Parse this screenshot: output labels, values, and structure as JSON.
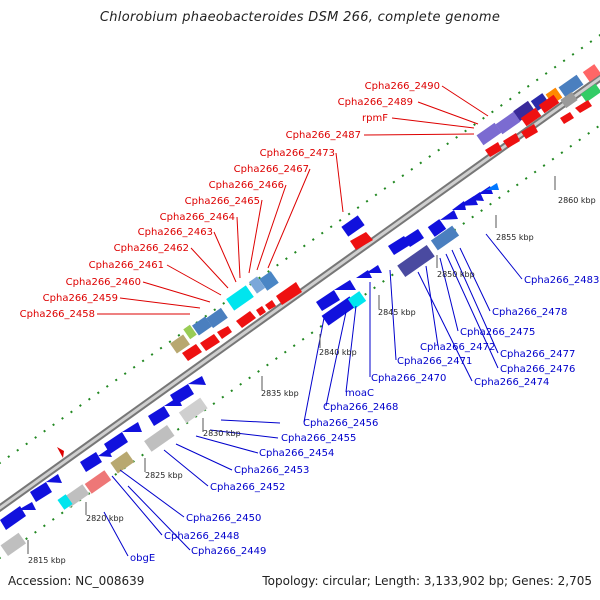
{
  "title": "Chlorobium phaeobacteroides DSM 266, complete genome",
  "footer": {
    "accession": "Accession: NC_008639",
    "topology": "Topology: circular; Length: 3,133,902 bp; Genes: 2,705"
  },
  "colors": {
    "forward_label": "#dd0000",
    "reverse_label": "#0000cc",
    "forward_gene": "#ee1111",
    "reverse_gene": "#1111dd",
    "backbone": "#999999",
    "tick": "#228822"
  },
  "kbp_marks": [
    "2815 kbp",
    "2820 kbp",
    "2825 kbp",
    "2830 kbp",
    "2835 kbp",
    "2840 kbp",
    "2845 kbp",
    "2850 kbp",
    "2855 kbp",
    "2860 kbp"
  ],
  "labels_forward": [
    "Cpha266_2490",
    "Cpha266_2489",
    "rpmF",
    "Cpha266_2487",
    "Cpha266_2473",
    "Cpha266_2467",
    "Cpha266_2466",
    "Cpha266_2465",
    "Cpha266_2464",
    "Cpha266_2463",
    "Cpha266_2462",
    "Cpha266_2461",
    "Cpha266_2460",
    "Cpha266_2459",
    "Cpha266_2458"
  ],
  "labels_reverse": [
    "Cpha266_2483",
    "Cpha266_2478",
    "Cpha266_2475",
    "Cpha266_2472",
    "Cpha266_2477",
    "Cpha266_2476",
    "Cpha266_2471",
    "Cpha266_2474",
    "Cpha266_2470",
    "moaC",
    "Cpha266_2468",
    "Cpha266_2456",
    "Cpha266_2455",
    "Cpha266_2454",
    "Cpha266_2453",
    "Cpha266_2452",
    "Cpha266_2450",
    "Cpha266_2448",
    "Cpha266_2449",
    "obgE"
  ]
}
